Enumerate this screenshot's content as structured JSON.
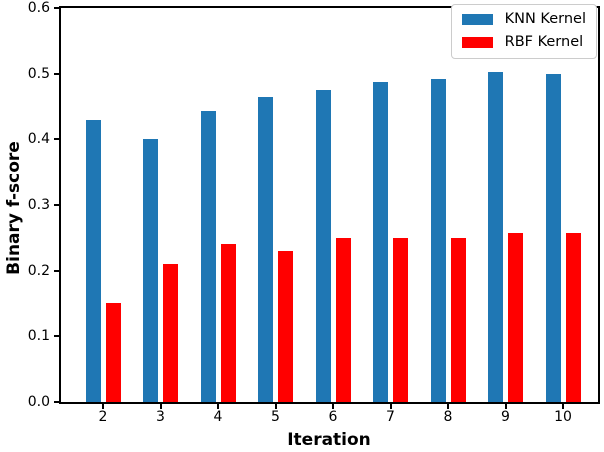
{
  "chart_data": {
    "type": "bar",
    "title": "",
    "xlabel": "Iteration",
    "ylabel": "Binary f-score",
    "categories": [
      "2",
      "3",
      "4",
      "5",
      "6",
      "7",
      "8",
      "9",
      "10"
    ],
    "series": [
      {
        "name": "KNN Kernel",
        "color": "#1f77b4",
        "values": [
          0.43,
          0.4,
          0.443,
          0.465,
          0.475,
          0.488,
          0.492,
          0.503,
          0.5
        ]
      },
      {
        "name": "RBF Kernel",
        "color": "#ff0000",
        "values": [
          0.15,
          0.21,
          0.24,
          0.23,
          0.25,
          0.25,
          0.25,
          0.258,
          0.258
        ]
      }
    ],
    "ylim": [
      0.0,
      0.6
    ],
    "yticks": [
      "0.0",
      "0.1",
      "0.2",
      "0.3",
      "0.4",
      "0.5",
      "0.6"
    ],
    "grid": false,
    "legend_position": "upper right",
    "axis_color": "#000000",
    "background_color": "#ffffff"
  }
}
